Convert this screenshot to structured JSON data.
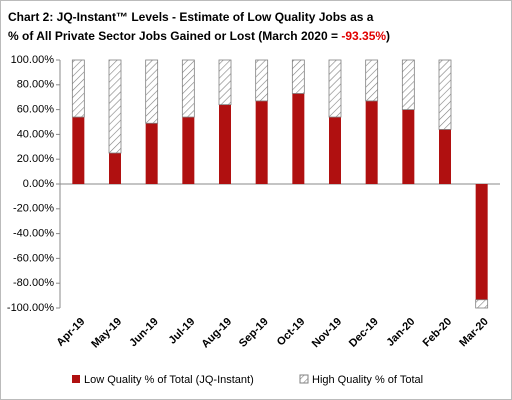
{
  "chart_data": {
    "type": "stacked-bar",
    "title_lines": [
      "Chart 2: JQ-Instant™ Levels - Estimate of Low Quality Jobs as a",
      "% of All Private Sector Jobs Gained or Lost (March 2020 ="
    ],
    "title_value": "-93.35%",
    "title_value_color": "#e00000",
    "title_suffix": ")",
    "categories": [
      "Apr-19",
      "May-19",
      "Jun-19",
      "Jul-19",
      "Aug-19",
      "Sep-19",
      "Oct-19",
      "Nov-19",
      "Dec-19",
      "Jan-20",
      "Feb-20",
      "Mar-20"
    ],
    "series": [
      {
        "name": "Low Quality % of Total (JQ-Instant)",
        "color": "#b01010",
        "pattern": "solid",
        "values": [
          54,
          25,
          49,
          54,
          64,
          67,
          73,
          54,
          67,
          60,
          44,
          -93.35
        ]
      },
      {
        "name": "High Quality % of Total",
        "color": "#808080",
        "pattern": "hatch",
        "values": [
          46,
          75,
          51,
          46,
          36,
          33,
          27,
          46,
          33,
          40,
          56,
          -6.65
        ]
      }
    ],
    "ylim": [
      -100,
      100
    ],
    "yticks": [
      {
        "value": -100,
        "label": "-100.00%"
      },
      {
        "value": -80,
        "label": "-80.00%"
      },
      {
        "value": -60,
        "label": "-60.00%"
      },
      {
        "value": -40,
        "label": "-40.00%"
      },
      {
        "value": -20,
        "label": "-20.00%"
      },
      {
        "value": 0,
        "label": "0.00%"
      },
      {
        "value": 20,
        "label": "20.00%"
      },
      {
        "value": 40,
        "label": "40.00%"
      },
      {
        "value": 60,
        "label": "60.00%"
      },
      {
        "value": 80,
        "label": "80.00%"
      },
      {
        "value": 100,
        "label": "100.00%"
      }
    ],
    "legend": "bottom"
  }
}
